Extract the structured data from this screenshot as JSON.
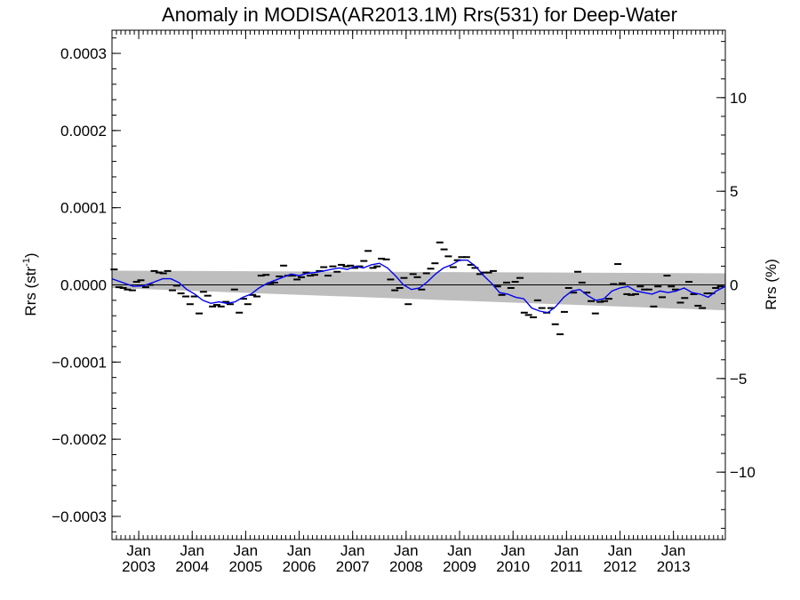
{
  "chart_data": {
    "type": "line",
    "title": "Anomaly in MODISA(AR2013.1M) Rrs(531) for Deep-Water",
    "ylabel_left": "Rrs (str",
    "ylabel_left_sup": "-1",
    "ylabel_left_close": ")",
    "ylabel_right": "Rrs (%)",
    "xlim": [
      2002.5,
      2013.97
    ],
    "ylim_left": [
      -0.00033,
      0.00033
    ],
    "ylim_right": [
      -13.6,
      13.6
    ],
    "y_ticks_left": [
      {
        "value": 0.0003,
        "label": "0.0003"
      },
      {
        "value": 0.0002,
        "label": "0.0002"
      },
      {
        "value": 0.0001,
        "label": "0.0001"
      },
      {
        "value": 0.0,
        "label": "0.0000"
      },
      {
        "value": -0.0001,
        "label": "−0.0001"
      },
      {
        "value": -0.0002,
        "label": "−0.0002"
      },
      {
        "value": -0.0003,
        "label": "−0.0003"
      }
    ],
    "y_ticks_right": [
      {
        "value": 10,
        "label": "10"
      },
      {
        "value": 5,
        "label": "5"
      },
      {
        "value": 0,
        "label": "0"
      },
      {
        "value": -5,
        "label": "−5"
      },
      {
        "value": -10,
        "label": "−10"
      }
    ],
    "x_ticks": [
      {
        "value": 2003.0,
        "label1": "Jan",
        "label2": "2003"
      },
      {
        "value": 2004.0,
        "label1": "Jan",
        "label2": "2004"
      },
      {
        "value": 2005.0,
        "label1": "Jan",
        "label2": "2005"
      },
      {
        "value": 2006.0,
        "label1": "Jan",
        "label2": "2006"
      },
      {
        "value": 2007.0,
        "label1": "Jan",
        "label2": "2007"
      },
      {
        "value": 2008.0,
        "label1": "Jan",
        "label2": "2008"
      },
      {
        "value": 2009.0,
        "label1": "Jan",
        "label2": "2009"
      },
      {
        "value": 2010.0,
        "label1": "Jan",
        "label2": "2010"
      },
      {
        "value": 2011.0,
        "label1": "Jan",
        "label2": "2011"
      },
      {
        "value": 2012.0,
        "label1": "Jan",
        "label2": "2012"
      },
      {
        "value": 2013.0,
        "label1": "Jan",
        "label2": "2013"
      }
    ],
    "band": {
      "x": [
        2002.5,
        2013.97
      ],
      "upper": [
        1.85e-05,
        1.5e-05
      ],
      "lower": [
        -4e-06,
        -3.3e-05
      ],
      "color": "#bebebe"
    },
    "zero_line": 0,
    "series": [
      {
        "kind": "markers",
        "color": "#000000",
        "x": [
          2002.54,
          2002.63,
          2002.71,
          2002.79,
          2002.88,
          2002.96,
          2003.04,
          2003.13,
          2003.21,
          2003.29,
          2003.38,
          2003.46,
          2003.54,
          2003.63,
          2003.71,
          2003.79,
          2003.88,
          2003.96,
          2004.04,
          2004.13,
          2004.21,
          2004.29,
          2004.38,
          2004.46,
          2004.54,
          2004.63,
          2004.71,
          2004.79,
          2004.88,
          2004.96,
          2005.04,
          2005.13,
          2005.21,
          2005.29,
          2005.38,
          2005.46,
          2005.54,
          2005.63,
          2005.71,
          2005.79,
          2005.88,
          2005.96,
          2006.04,
          2006.13,
          2006.21,
          2006.29,
          2006.38,
          2006.46,
          2006.54,
          2006.63,
          2006.71,
          2006.79,
          2006.88,
          2006.96,
          2007.04,
          2007.13,
          2007.21,
          2007.29,
          2007.38,
          2007.46,
          2007.54,
          2007.63,
          2007.71,
          2007.79,
          2007.88,
          2007.96,
          2008.04,
          2008.13,
          2008.21,
          2008.29,
          2008.38,
          2008.46,
          2008.54,
          2008.63,
          2008.71,
          2008.79,
          2008.88,
          2008.96,
          2009.04,
          2009.13,
          2009.21,
          2009.29,
          2009.38,
          2009.46,
          2009.54,
          2009.63,
          2009.71,
          2009.79,
          2009.88,
          2009.96,
          2010.04,
          2010.13,
          2010.21,
          2010.29,
          2010.38,
          2010.46,
          2010.54,
          2010.63,
          2010.71,
          2010.79,
          2010.88,
          2010.96,
          2011.04,
          2011.13,
          2011.21,
          2011.29,
          2011.38,
          2011.46,
          2011.54,
          2011.63,
          2011.71,
          2011.79,
          2011.88,
          2011.96,
          2012.04,
          2012.13,
          2012.21,
          2012.29,
          2012.38,
          2012.46,
          2012.54,
          2012.63,
          2012.71,
          2012.79,
          2012.88,
          2012.96,
          2013.04,
          2013.13,
          2013.21,
          2013.29,
          2013.38,
          2013.46,
          2013.54,
          2013.63,
          2013.71,
          2013.79,
          2013.88
        ],
        "y": [
          2e-05,
          -3e-06,
          -4e-06,
          -6e-06,
          -7e-06,
          4e-06,
          6e-06,
          -3e-06,
          0.0,
          1.8e-05,
          1.6e-05,
          1.5e-05,
          1.8e-05,
          -7e-06,
          -1e-06,
          -1.1e-05,
          -1.5e-05,
          -2.5e-05,
          -1.5e-05,
          -3.7e-05,
          -9e-06,
          -1.4e-05,
          -2.8e-05,
          -2.6e-05,
          -2.8e-05,
          -2.2e-05,
          -2.5e-05,
          -6e-06,
          -3.6e-05,
          -1.8e-05,
          -2.5e-05,
          -1.3e-05,
          -1.5e-05,
          1.2e-05,
          1.3e-05,
          2e-06,
          3e-06,
          1.1e-05,
          2.5e-05,
          1.2e-05,
          1.2e-05,
          7e-06,
          1e-05,
          1.6e-05,
          1.2e-05,
          1.3e-05,
          1.8e-05,
          2.3e-05,
          1.2e-05,
          2.4e-05,
          1.7e-05,
          2.6e-05,
          2.4e-05,
          2.5e-05,
          2.2e-05,
          2.4e-05,
          3.1e-05,
          4.4e-05,
          2.2e-05,
          2.4e-05,
          3.4e-05,
          3.3e-05,
          7e-06,
          -7e-06,
          -4e-06,
          9e-06,
          -2.5e-05,
          1.4e-05,
          1e-05,
          -6e-06,
          1.5e-05,
          2.1e-05,
          2.8e-05,
          5.5e-05,
          4.6e-05,
          3.7e-05,
          2.3e-05,
          3.2e-05,
          3.6e-05,
          3.6e-05,
          2.6e-05,
          2.2e-05,
          1.4e-05,
          1.6e-05,
          1.6e-05,
          1.8e-05,
          -2e-06,
          -1.3e-05,
          3e-06,
          -4e-06,
          4e-06,
          9e-06,
          -3.6e-05,
          -3.9e-05,
          -4.2e-05,
          -2e-05,
          -3e-05,
          -3.6e-05,
          -3e-05,
          -5.1e-05,
          -6.4e-05,
          -3.5e-05,
          -4e-06,
          -1e-05,
          1.7e-05,
          3e-06,
          -1e-05,
          -2.1e-05,
          -3.7e-05,
          -2.2e-05,
          -2.1e-05,
          -1.8e-05,
          1e-06,
          2.7e-05,
          2e-06,
          -1.2e-05,
          -1.3e-05,
          -1.2e-05,
          -2e-06,
          -6e-06,
          -6e-06,
          -2.8e-05,
          -2e-06,
          -1.6e-05,
          1.2e-05,
          -2e-06,
          -6e-06,
          -2.3e-05,
          -1.7e-05,
          4e-06,
          -1.2e-05,
          -2.7e-05,
          -3e-05,
          -1.1e-05,
          -1.1e-05,
          -4e-06,
          -2e-06
        ]
      },
      {
        "kind": "line",
        "color": "#0000ee",
        "x": [
          2002.5,
          2002.7,
          2002.9,
          2003.1,
          2003.3,
          2003.45,
          2003.6,
          2003.75,
          2003.9,
          2004.05,
          2004.2,
          2004.35,
          2004.5,
          2004.65,
          2004.8,
          2004.95,
          2005.1,
          2005.25,
          2005.4,
          2005.55,
          2005.7,
          2005.85,
          2006.0,
          2006.15,
          2006.3,
          2006.45,
          2006.6,
          2006.75,
          2006.9,
          2007.05,
          2007.2,
          2007.35,
          2007.5,
          2007.65,
          2007.8,
          2007.95,
          2008.1,
          2008.25,
          2008.4,
          2008.55,
          2008.7,
          2008.85,
          2009.0,
          2009.15,
          2009.3,
          2009.45,
          2009.6,
          2009.75,
          2009.9,
          2010.05,
          2010.2,
          2010.35,
          2010.5,
          2010.65,
          2010.8,
          2010.95,
          2011.1,
          2011.25,
          2011.4,
          2011.55,
          2011.7,
          2011.85,
          2012.0,
          2012.15,
          2012.3,
          2012.45,
          2012.6,
          2012.75,
          2012.9,
          2013.05,
          2013.2,
          2013.35,
          2013.5,
          2013.65,
          2013.8,
          2013.97
        ],
        "y": [
          8e-06,
          3e-06,
          -2e-06,
          -1e-06,
          4e-06,
          8e-06,
          8e-06,
          3e-06,
          -6e-06,
          -1.2e-05,
          -2e-05,
          -2.4e-05,
          -2.2e-05,
          -2.4e-05,
          -2.2e-05,
          -1.6e-05,
          -1.2e-05,
          -4e-06,
          2e-06,
          6e-06,
          1e-05,
          1.4e-05,
          1.2e-05,
          1.5e-05,
          1.6e-05,
          1.8e-05,
          2e-05,
          2.2e-05,
          2e-05,
          2.4e-05,
          2.2e-05,
          2.6e-05,
          2.8e-05,
          2.2e-05,
          1.2e-05,
          0.0,
          -6e-06,
          -4e-06,
          4e-06,
          1.4e-05,
          2.2e-05,
          2.6e-05,
          3.2e-05,
          3.2e-05,
          2.4e-05,
          1.2e-05,
          2e-06,
          -1e-05,
          -1.2e-05,
          -1.6e-05,
          -1.8e-05,
          -3e-05,
          -3.4e-05,
          -3.6e-05,
          -2.8e-05,
          -1.6e-05,
          -8e-06,
          -6e-06,
          -1.4e-05,
          -2e-05,
          -1.8e-05,
          -8e-06,
          -4e-06,
          -2e-06,
          -8e-06,
          -1e-05,
          -1.2e-05,
          -8e-06,
          -1e-05,
          -8e-06,
          -4e-06,
          -1e-05,
          -1.2e-05,
          -1.6e-05,
          -8e-06,
          -2e-06
        ]
      }
    ]
  }
}
